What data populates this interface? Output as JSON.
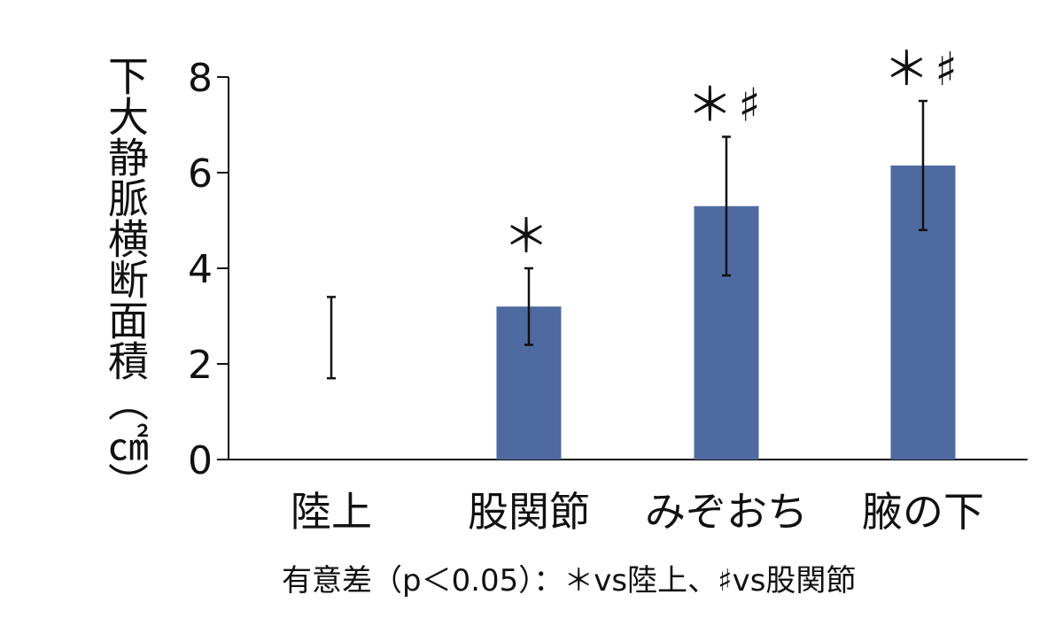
{
  "chart_data": {
    "type": "bar",
    "ylabel": "下大静脈横断面積（㎠）",
    "categories": [
      "陸上",
      "股関節",
      "みぞおち",
      "腋の下"
    ],
    "values": [
      2.55,
      3.2,
      5.3,
      6.15
    ],
    "error": [
      0.85,
      0.8,
      1.45,
      1.35
    ],
    "bar_visible": [
      false,
      true,
      true,
      true
    ],
    "annotations": [
      "",
      "＊",
      "＊♯",
      "＊♯"
    ],
    "ylim": [
      0,
      8
    ],
    "yticks": [
      0,
      2,
      4,
      6,
      8
    ],
    "bar_color": "#4f6aa0",
    "grid": false
  },
  "footnote": "有意差（p＜0.05）：＊vs陸上、♯vs股関節"
}
